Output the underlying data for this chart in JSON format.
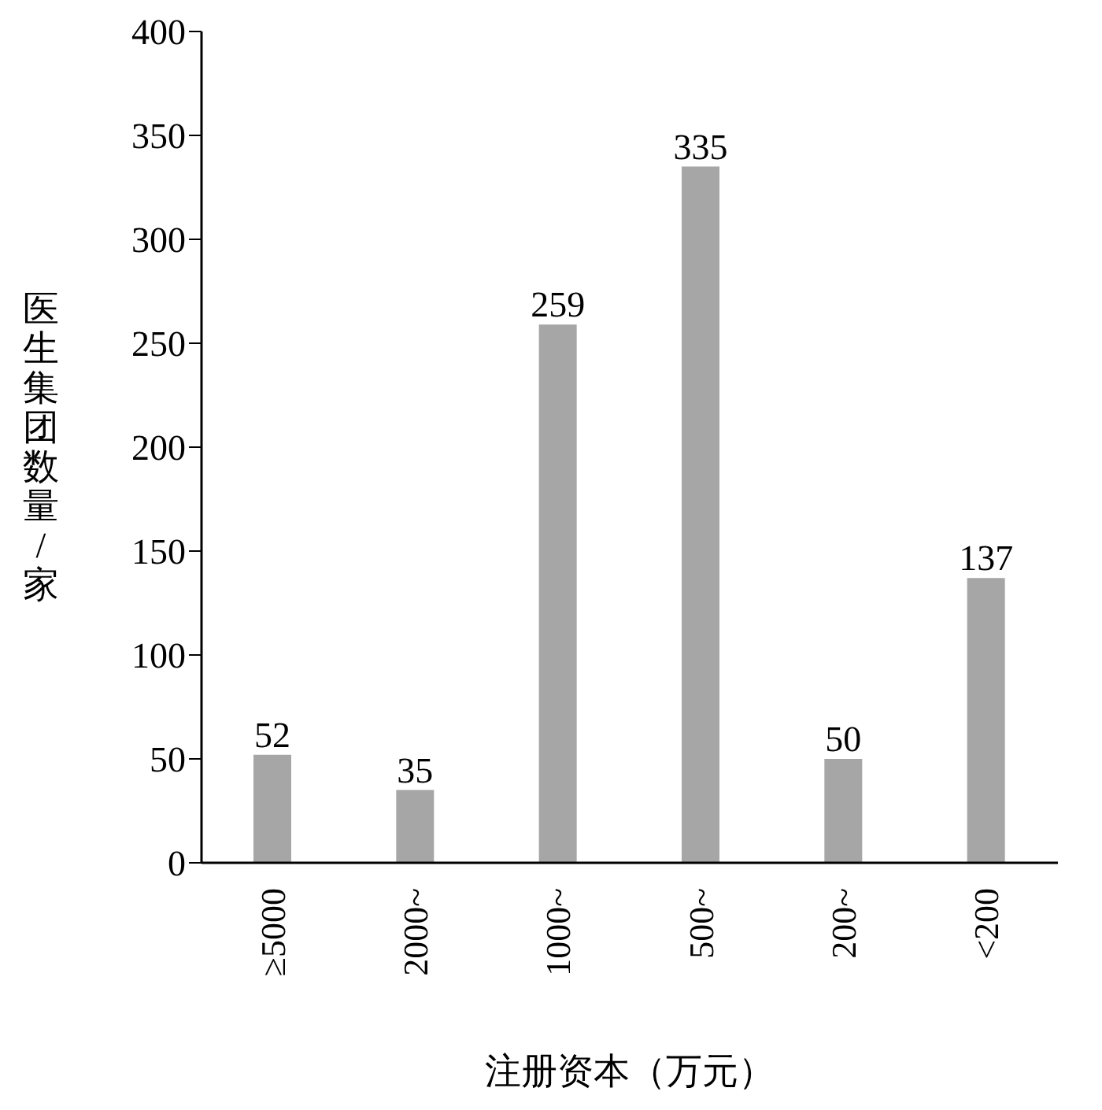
{
  "chart_data": {
    "type": "bar",
    "xlabel": "注册资本（万元）",
    "ylabel": "医生集团数量/家",
    "categories": [
      "≥5000",
      "2000~",
      "1000~",
      "500~",
      "200~",
      "<200"
    ],
    "values": [
      52,
      35,
      259,
      335,
      50,
      137
    ],
    "color": "#a6a6a6",
    "ylim": [
      0,
      400
    ],
    "yticks": [
      0,
      50,
      100,
      150,
      200,
      250,
      300,
      350,
      400
    ],
    "data_labels": true
  }
}
